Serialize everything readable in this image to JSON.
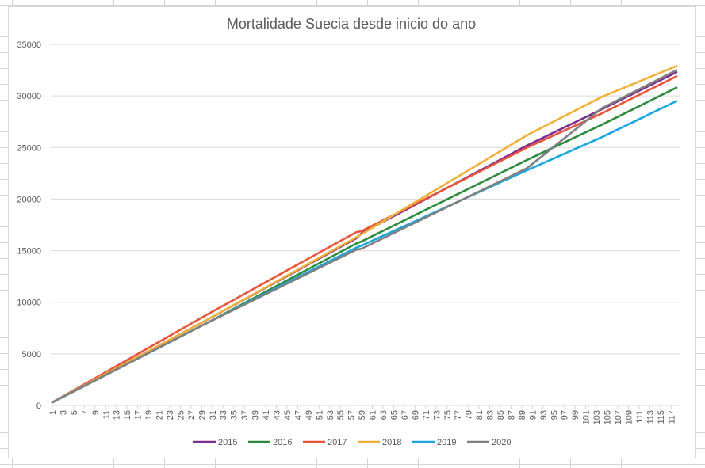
{
  "chart_data": {
    "type": "line",
    "title": "Mortalidade Suecia desde inicio do ano",
    "xlabel": "",
    "ylabel": "",
    "ylim": [
      0,
      35000
    ],
    "yticks": [
      0,
      5000,
      10000,
      15000,
      20000,
      25000,
      30000,
      35000
    ],
    "x_range": [
      1,
      118
    ],
    "x_tick_labels": [
      "1",
      "3",
      "5",
      "7",
      "9",
      "11",
      "13",
      "15",
      "17",
      "19",
      "21",
      "23",
      "25",
      "27",
      "29",
      "31",
      "33",
      "35",
      "37",
      "39",
      "41",
      "43",
      "45",
      "47",
      "49",
      "51",
      "53",
      "55",
      "57",
      "59",
      "61",
      "63",
      "65",
      "67",
      "69",
      "71",
      "73",
      "75",
      "77",
      "79",
      "81",
      "83",
      "85",
      "87",
      "89",
      "91",
      "93",
      "95",
      "97",
      "99",
      "101",
      "103",
      "105",
      "107",
      "109",
      "111",
      "113",
      "115",
      "117"
    ],
    "grid": "horizontal",
    "legend_position": "bottom",
    "series": [
      {
        "name": "2015",
        "color": "#7e2d8f",
        "points": [
          [
            1,
            300
          ],
          [
            30,
            8300
          ],
          [
            58,
            16200
          ],
          [
            59,
            16700
          ],
          [
            90,
            25200
          ],
          [
            104,
            28700
          ],
          [
            118,
            32300
          ]
        ]
      },
      {
        "name": "2016",
        "color": "#2e8b3e",
        "points": [
          [
            1,
            300
          ],
          [
            30,
            8000
          ],
          [
            58,
            15700
          ],
          [
            59,
            15900
          ],
          [
            90,
            23800
          ],
          [
            104,
            27200
          ],
          [
            118,
            30800
          ]
        ]
      },
      {
        "name": "2017",
        "color": "#e8553c",
        "points": [
          [
            1,
            300
          ],
          [
            30,
            8800
          ],
          [
            58,
            16800
          ],
          [
            59,
            16900
          ],
          [
            90,
            25000
          ],
          [
            104,
            28300
          ],
          [
            118,
            31900
          ]
        ]
      },
      {
        "name": "2018",
        "color": "#f0b13a",
        "points": [
          [
            1,
            300
          ],
          [
            30,
            8300
          ],
          [
            58,
            16300
          ],
          [
            59,
            16600
          ],
          [
            90,
            26200
          ],
          [
            104,
            29900
          ],
          [
            118,
            32900
          ]
        ]
      },
      {
        "name": "2019",
        "color": "#1aa6e0",
        "points": [
          [
            1,
            300
          ],
          [
            30,
            8000
          ],
          [
            58,
            15300
          ],
          [
            59,
            15500
          ],
          [
            90,
            22800
          ],
          [
            104,
            26000
          ],
          [
            118,
            29500
          ]
        ]
      },
      {
        "name": "2020",
        "color": "#808080",
        "points": [
          [
            1,
            300
          ],
          [
            30,
            8000
          ],
          [
            58,
            15100
          ],
          [
            59,
            15200
          ],
          [
            90,
            23000
          ],
          [
            104,
            28800
          ],
          [
            118,
            32500
          ]
        ]
      }
    ]
  }
}
